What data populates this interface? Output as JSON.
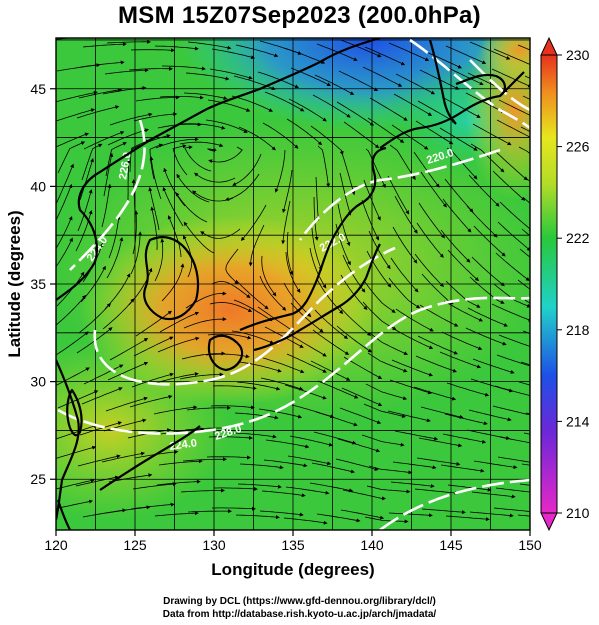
{
  "title": "MSM 15Z07Sep2023 (200.0hPa)",
  "axes": {
    "xlabel": "Longitude (degrees)",
    "ylabel": "Latitude  (degrees)",
    "xticks": [
      "120",
      "125",
      "130",
      "135",
      "140",
      "145",
      "150"
    ],
    "yticks": [
      "25",
      "30",
      "35",
      "40",
      "45"
    ],
    "xrange": [
      120,
      150
    ],
    "yrange": [
      22.4,
      47.6
    ]
  },
  "colorbar": {
    "ticks": [
      "230",
      "226",
      "222",
      "218",
      "214",
      "210"
    ],
    "range": [
      210,
      230
    ]
  },
  "contour_labels": [
    "220.0",
    "222.0",
    "224.0",
    "226.0",
    "228.0",
    "224.0"
  ],
  "credits": {
    "line1": "Drawing by DCL (https://www.gfd-dennou.org/library/dcl/)",
    "line2": "Data from http://database.rish.kyoto-u.ac.jp/arch/jmadata/"
  },
  "colors": {
    "blue": "#1e50e6",
    "cyan": "#20d2c8",
    "green": "#28c83c",
    "yellow": "#e6e61e",
    "orange": "#f08c1e",
    "red": "#e6321e",
    "magenta": "#e628c8"
  }
}
